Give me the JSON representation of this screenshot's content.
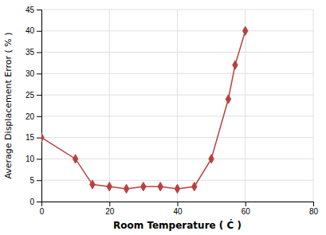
{
  "chart_data": {
    "type": "line",
    "xlabel": "Room Temperature ( Ċ )",
    "ylabel": "Average Displacement Error ( % )",
    "x": [
      0,
      10,
      15,
      20,
      25,
      30,
      35,
      40,
      45,
      50,
      55,
      57,
      60
    ],
    "values": [
      15,
      10,
      4,
      3.5,
      3,
      3.5,
      3.5,
      3,
      3.5,
      10,
      24,
      32,
      40
    ],
    "color": "#b94040",
    "marker": "diamond",
    "xlim": [
      0,
      80
    ],
    "ylim": [
      0,
      45
    ],
    "xticks": [
      0,
      20,
      40,
      60,
      80
    ],
    "yticks": [
      0,
      5,
      10,
      15,
      20,
      25,
      30,
      35,
      40,
      45
    ],
    "grid": true
  }
}
